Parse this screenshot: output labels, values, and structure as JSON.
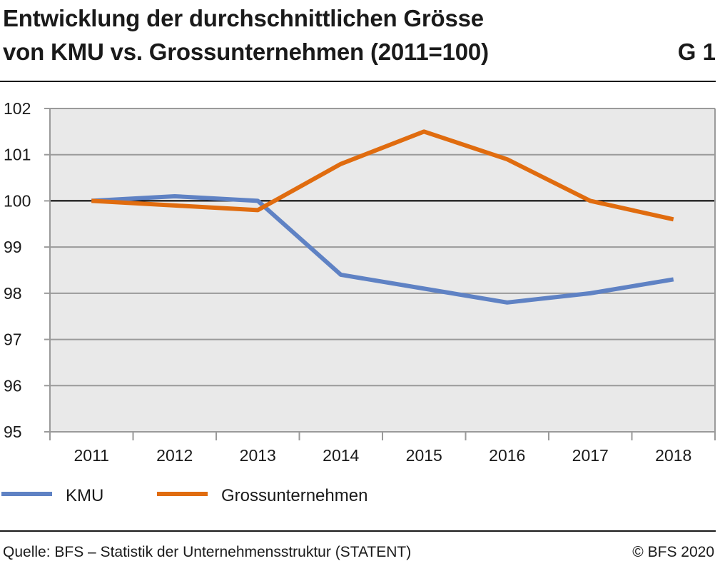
{
  "header": {
    "title_line1": "Entwicklung der durchschnittlichen Grösse",
    "title_line2": "von KMU vs. Grossunternehmen (2011=100)",
    "chart_id": "G 1"
  },
  "footer": {
    "source": "Quelle: BFS – Statistik der Unternehmensstruktur (STATENT)",
    "copyright": "© BFS 2020"
  },
  "chart_data": {
    "type": "line",
    "title": "Entwicklung der durchschnittlichen Grösse von KMU vs. Grossunternehmen (2011=100)",
    "categories": [
      "2011",
      "2012",
      "2013",
      "2014",
      "2015",
      "2016",
      "2017",
      "2018"
    ],
    "series": [
      {
        "name": "KMU",
        "color": "#5f82c4",
        "values": [
          100.0,
          100.1,
          100.0,
          98.4,
          98.1,
          97.8,
          98.0,
          98.3
        ]
      },
      {
        "name": "Grossunternehmen",
        "color": "#e06c0f",
        "values": [
          100.0,
          99.9,
          99.8,
          100.8,
          101.5,
          100.9,
          100.0,
          99.6
        ]
      }
    ],
    "ylim": [
      95,
      102
    ],
    "yticks": [
      95,
      96,
      97,
      98,
      99,
      100,
      101,
      102
    ],
    "reference_line": 100,
    "grid": true,
    "plot_background": "#e9e9e9",
    "legend_position": "bottom-left"
  }
}
